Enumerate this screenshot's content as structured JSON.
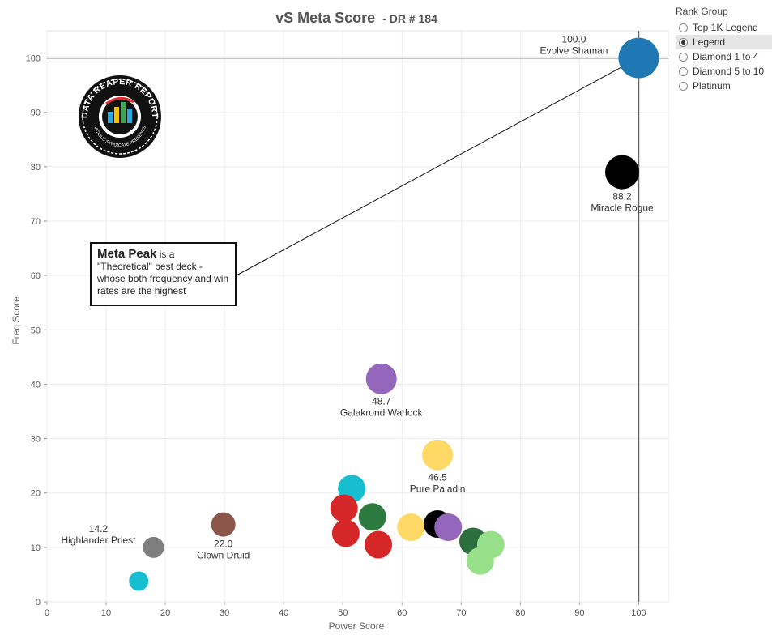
{
  "title": {
    "main": "vS Meta Score",
    "sub": "- DR # 184"
  },
  "legend": {
    "title": "Rank Group",
    "items": [
      {
        "label": "Top 1K Legend",
        "selected": false
      },
      {
        "label": "Legend",
        "selected": true
      },
      {
        "label": "Diamond 1 to 4",
        "selected": false
      },
      {
        "label": "Diamond 5 to 10",
        "selected": false
      },
      {
        "label": "Platinum",
        "selected": false
      }
    ]
  },
  "note": {
    "strong": "Meta Peak",
    "rest": " is a \"Theoretical\" best deck - whose both frequency and win rates are the highest"
  },
  "logo": {
    "line1": "DATA REAPER REPORT",
    "line2": "VICIOUS SYNDICATE PRESENTS",
    "colors": [
      "#111111",
      "#ffffff",
      "#2aa7e0",
      "#f4c300",
      "#3aa655",
      "#d6312e"
    ]
  },
  "chart_data": {
    "type": "scatter",
    "xlabel": "Power Score",
    "ylabel": "Freq Score",
    "xlim": [
      0,
      105
    ],
    "ylim": [
      0,
      105
    ],
    "xticks": [
      0,
      10,
      20,
      30,
      40,
      50,
      60,
      70,
      80,
      90,
      100
    ],
    "yticks": [
      0,
      10,
      20,
      30,
      40,
      50,
      60,
      70,
      80,
      90,
      100
    ],
    "grid": true,
    "reference_lines": {
      "x": 100,
      "y": 100
    },
    "points": [
      {
        "x": 100.0,
        "y": 100.0,
        "color": "#1f77b4",
        "r": 25,
        "value_label": "100.0",
        "name_label": "Evolve Shaman",
        "label_pos": "left"
      },
      {
        "x": 97.2,
        "y": 79.0,
        "color": "#000000",
        "r": 21,
        "value_label": "88.2",
        "name_label": "Miracle Rogue",
        "label_pos": "below"
      },
      {
        "x": 56.5,
        "y": 41.0,
        "color": "#9467bd",
        "r": 19,
        "value_label": "48.7",
        "name_label": "Galakrond Warlock",
        "label_pos": "below"
      },
      {
        "x": 66.0,
        "y": 27.0,
        "color": "#ffd966",
        "r": 19,
        "value_label": "46.5",
        "name_label": "Pure Paladin",
        "label_pos": "below"
      },
      {
        "x": 29.8,
        "y": 14.2,
        "color": "#8c564b",
        "r": 15,
        "value_label": "22.0",
        "name_label": "Clown Druid",
        "label_pos": "below"
      },
      {
        "x": 18.0,
        "y": 10.0,
        "color": "#7f7f7f",
        "r": 13,
        "value_label": "14.2",
        "name_label": "Highlander Priest",
        "label_pos": "left"
      },
      {
        "x": 15.5,
        "y": 3.8,
        "color": "#17becf",
        "r": 12,
        "value_label": "",
        "name_label": "",
        "label_pos": "none"
      },
      {
        "x": 51.5,
        "y": 20.8,
        "color": "#17becf",
        "r": 17,
        "value_label": "",
        "name_label": "",
        "label_pos": "none"
      },
      {
        "x": 50.2,
        "y": 17.2,
        "color": "#d62728",
        "r": 17,
        "value_label": "",
        "name_label": "",
        "label_pos": "none"
      },
      {
        "x": 50.5,
        "y": 12.6,
        "color": "#d62728",
        "r": 17,
        "value_label": "",
        "name_label": "",
        "label_pos": "none"
      },
      {
        "x": 56.0,
        "y": 10.5,
        "color": "#d62728",
        "r": 17,
        "value_label": "",
        "name_label": "",
        "label_pos": "none"
      },
      {
        "x": 55.0,
        "y": 15.6,
        "color": "#2d7a3e",
        "r": 17,
        "value_label": "",
        "name_label": "",
        "label_pos": "none"
      },
      {
        "x": 61.5,
        "y": 13.7,
        "color": "#ffd966",
        "r": 17,
        "value_label": "",
        "name_label": "",
        "label_pos": "none"
      },
      {
        "x": 66.0,
        "y": 14.3,
        "color": "#000000",
        "r": 17,
        "value_label": "",
        "name_label": "",
        "label_pos": "none"
      },
      {
        "x": 67.8,
        "y": 13.7,
        "color": "#9467bd",
        "r": 17,
        "value_label": "",
        "name_label": "",
        "label_pos": "none"
      },
      {
        "x": 72.0,
        "y": 11.1,
        "color": "#2d6e3e",
        "r": 17,
        "value_label": "",
        "name_label": "",
        "label_pos": "none"
      },
      {
        "x": 75.0,
        "y": 10.5,
        "color": "#98df8a",
        "r": 17,
        "value_label": "",
        "name_label": "",
        "label_pos": "none"
      },
      {
        "x": 73.2,
        "y": 7.5,
        "color": "#98df8a",
        "r": 17,
        "value_label": "",
        "name_label": "",
        "label_pos": "none"
      }
    ],
    "annotation_arrow": {
      "from": "note",
      "to_point": [
        100,
        100
      ]
    }
  }
}
